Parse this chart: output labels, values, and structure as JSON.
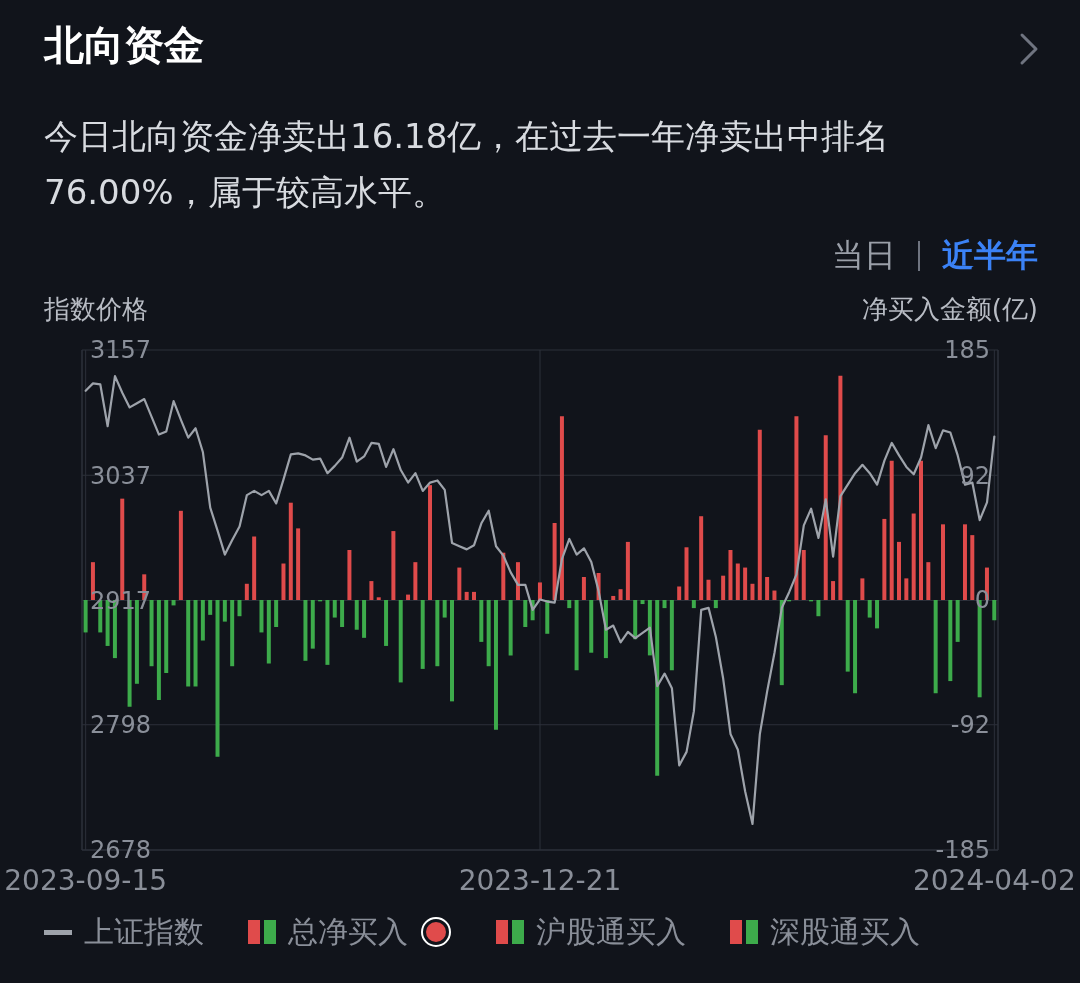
{
  "chart_data": {
    "type": "bar",
    "title": "北向资金",
    "subtitle": "今日北向资金净卖出16.18亿，在过去一年净卖出中排名76.00%，属于较高水平。",
    "annotations": [
      "当日",
      "近半年"
    ],
    "ylabel": "指数价格",
    "y2label": "净买入金额(亿)",
    "categories": [
      "2023-09-15",
      null,
      null,
      null,
      null,
      null,
      null,
      null,
      null,
      null,
      null,
      null,
      null,
      null,
      null,
      null,
      null,
      null,
      null,
      null,
      null,
      null,
      null,
      null,
      null,
      null,
      null,
      null,
      null,
      null,
      null,
      null,
      null,
      null,
      null,
      null,
      null,
      null,
      null,
      null,
      null,
      null,
      null,
      null,
      null,
      null,
      null,
      null,
      null,
      null,
      null,
      null,
      null,
      null,
      null,
      null,
      null,
      null,
      null,
      null,
      null,
      null,
      "2023-12-21",
      null,
      null,
      null,
      null,
      null,
      null,
      null,
      null,
      null,
      null,
      null,
      null,
      null,
      null,
      null,
      null,
      null,
      null,
      null,
      null,
      null,
      null,
      null,
      null,
      null,
      null,
      null,
      null,
      null,
      null,
      null,
      null,
      null,
      null,
      null,
      null,
      null,
      null,
      null,
      null,
      null,
      null,
      null,
      null,
      null,
      null,
      null,
      null,
      null,
      null,
      null,
      null,
      null,
      null,
      null,
      null,
      null,
      null,
      null,
      null,
      null,
      "2024-04-02"
    ],
    "series": [
      {
        "name": "上证指数",
        "type": "line",
        "color": "#9ea3ab",
        "values": [
          3118,
          3125,
          3124,
          3084,
          3132,
          3116,
          3102,
          3106,
          3110,
          3093,
          3076,
          3079,
          3108,
          3090,
          3073,
          3082,
          3059,
          3006,
          2984,
          2961,
          2975,
          2988,
          3018,
          3022,
          3018,
          3022,
          3010,
          3033,
          3057,
          3058,
          3056,
          3052,
          3053,
          3039,
          3046,
          3054,
          3073,
          3050,
          3055,
          3068,
          3067,
          3045,
          3062,
          3042,
          3030,
          3039,
          3022,
          3030,
          3032,
          3023,
          2972,
          2969,
          2966,
          2970,
          2991,
          3003,
          2969,
          2960,
          2944,
          2932,
          2932,
          2908,
          2918,
          2916,
          2915,
          2957,
          2976,
          2961,
          2967,
          2954,
          2926,
          2889,
          2893,
          2877,
          2887,
          2881,
          2886,
          2891,
          2835,
          2847,
          2833,
          2759,
          2772,
          2811,
          2908,
          2910,
          2882,
          2842,
          2789,
          2774,
          2734,
          2703,
          2789,
          2830,
          2867,
          2910,
          2925,
          2942,
          2989,
          3005,
          2977,
          3014,
          2959,
          3017,
          3028,
          3039,
          3047,
          3039,
          3028,
          3051,
          3068,
          3056,
          3045,
          3038,
          3054,
          3085,
          3063,
          3080,
          3078,
          3056,
          3028,
          3030,
          2994,
          3011,
          3074
        ]
      },
      {
        "name": "总净买入",
        "axis": "y2",
        "values": [
          -24,
          28,
          -24,
          -34,
          -43,
          75,
          -79,
          -62,
          19,
          -49,
          -74,
          -54,
          -4,
          66,
          -64,
          -64,
          -30,
          -11,
          -116,
          -16,
          -49,
          -12,
          12,
          47,
          -24,
          -47,
          -20,
          27,
          72,
          53,
          -45,
          -36,
          -1,
          -48,
          -13,
          -20,
          37,
          -22,
          -28,
          14,
          2,
          -34,
          51,
          -61,
          4,
          28,
          -51,
          85,
          -49,
          -13,
          -75,
          24,
          6,
          6,
          -31,
          -49,
          -96,
          35,
          -41,
          28,
          -20,
          -15,
          13,
          -25,
          57,
          136,
          -6,
          -52,
          17,
          -39,
          20,
          -43,
          3,
          8,
          43,
          -29,
          -3,
          -41,
          -130,
          -6,
          -52,
          10,
          39,
          -6,
          62,
          15,
          -6,
          18,
          37,
          27,
          24,
          12,
          126,
          17,
          7,
          -63,
          -1,
          136,
          37,
          -1,
          -12,
          122,
          14,
          166,
          -53,
          -69,
          16,
          -13,
          -21,
          60,
          103,
          43,
          16,
          64,
          103,
          28,
          -69,
          56,
          -60,
          -31,
          56,
          48,
          -72,
          24,
          -15
        ],
        "colors": [
          "#3dab4b",
          "#e04b4b",
          "#3dab4b",
          "#3dab4b",
          "#3dab4b",
          "#e04b4b",
          "#3dab4b",
          "#3dab4b",
          "#e04b4b",
          "#3dab4b",
          "#3dab4b",
          "#3dab4b",
          "#3dab4b",
          "#e04b4b",
          "#3dab4b",
          "#3dab4b",
          "#3dab4b",
          "#3dab4b",
          "#3dab4b",
          "#3dab4b",
          "#3dab4b",
          "#3dab4b",
          "#e04b4b",
          "#e04b4b",
          "#3dab4b",
          "#3dab4b",
          "#3dab4b",
          "#e04b4b",
          "#e04b4b",
          "#e04b4b",
          "#3dab4b",
          "#3dab4b",
          "#3dab4b",
          "#3dab4b",
          "#3dab4b",
          "#3dab4b",
          "#e04b4b",
          "#3dab4b",
          "#3dab4b",
          "#e04b4b",
          "#e04b4b",
          "#3dab4b",
          "#e04b4b",
          "#3dab4b",
          "#e04b4b",
          "#e04b4b",
          "#3dab4b",
          "#e04b4b",
          "#3dab4b",
          "#3dab4b",
          "#3dab4b",
          "#e04b4b",
          "#e04b4b",
          "#e04b4b",
          "#3dab4b",
          "#3dab4b",
          "#3dab4b",
          "#e04b4b",
          "#3dab4b",
          "#e04b4b",
          "#3dab4b",
          "#3dab4b",
          "#e04b4b",
          "#3dab4b",
          "#e04b4b",
          "#e04b4b",
          "#3dab4b",
          "#3dab4b",
          "#e04b4b",
          "#3dab4b",
          "#e04b4b",
          "#3dab4b",
          "#e04b4b",
          "#e04b4b",
          "#e04b4b",
          "#3dab4b",
          "#3dab4b",
          "#3dab4b",
          "#3dab4b",
          "#3dab4b",
          "#3dab4b",
          "#e04b4b",
          "#e04b4b",
          "#3dab4b",
          "#e04b4b",
          "#e04b4b",
          "#3dab4b",
          "#e04b4b",
          "#e04b4b",
          "#e04b4b",
          "#e04b4b",
          "#e04b4b",
          "#e04b4b",
          "#e04b4b",
          "#e04b4b",
          "#3dab4b",
          "#3dab4b",
          "#e04b4b",
          "#e04b4b",
          "#3dab4b",
          "#3dab4b",
          "#e04b4b",
          "#e04b4b",
          "#e04b4b",
          "#3dab4b",
          "#3dab4b",
          "#e04b4b",
          "#3dab4b",
          "#3dab4b",
          "#e04b4b",
          "#e04b4b",
          "#e04b4b",
          "#e04b4b",
          "#e04b4b",
          "#e04b4b",
          "#e04b4b",
          "#3dab4b",
          "#e04b4b",
          "#3dab4b",
          "#3dab4b",
          "#e04b4b",
          "#e04b4b",
          "#3dab4b",
          "#e04b4b",
          "#3dab4b"
        ]
      },
      {
        "name": "沪股通买入",
        "axis": "y2",
        "values": [
          null,
          null,
          null,
          null,
          null,
          null,
          null,
          null,
          null,
          null,
          null,
          null,
          null,
          null,
          null,
          null,
          null,
          null,
          null,
          null,
          null,
          null,
          null,
          null,
          null,
          null,
          null,
          null,
          null,
          null,
          null,
          null,
          null,
          null,
          null,
          null,
          null,
          null,
          null,
          null,
          null,
          null,
          null,
          null,
          null,
          null,
          null,
          null,
          null,
          null,
          null,
          null,
          null,
          null,
          null,
          null,
          null,
          null,
          null,
          null,
          null,
          null,
          null,
          null,
          null,
          null,
          null,
          null,
          null,
          null,
          null,
          null,
          null,
          null,
          null,
          null,
          null,
          null,
          null,
          null,
          null,
          null,
          null,
          null,
          null,
          null,
          null,
          null,
          null,
          null,
          null,
          null,
          null,
          null,
          null,
          null,
          null,
          null,
          null,
          null,
          null,
          null,
          null,
          null,
          null,
          null,
          null,
          null,
          null,
          null,
          null,
          null,
          null,
          null,
          null,
          null,
          null,
          null,
          null,
          null,
          null,
          null,
          null,
          null,
          null
        ]
      },
      {
        "name": "深股通买入",
        "axis": "y2",
        "values": [
          null,
          null,
          null,
          null,
          null,
          null,
          null,
          null,
          null,
          null,
          null,
          null,
          null,
          null,
          null,
          null,
          null,
          null,
          null,
          null,
          null,
          null,
          null,
          null,
          null,
          null,
          null,
          null,
          null,
          null,
          null,
          null,
          null,
          null,
          null,
          null,
          null,
          null,
          null,
          null,
          null,
          null,
          null,
          null,
          null,
          null,
          null,
          null,
          null,
          null,
          null,
          null,
          null,
          null,
          null,
          null,
          null,
          null,
          null,
          null,
          null,
          null,
          null,
          null,
          null,
          null,
          null,
          null,
          null,
          null,
          null,
          null,
          null,
          null,
          null,
          null,
          null,
          null,
          null,
          null,
          null,
          null,
          null,
          null,
          null,
          null,
          null,
          null,
          null,
          null,
          null,
          null,
          null,
          null,
          null,
          null,
          null,
          null,
          null,
          null,
          null,
          null,
          null,
          null,
          null,
          null,
          null,
          null,
          null,
          null,
          null,
          null,
          null,
          null,
          null,
          null,
          null,
          null,
          null,
          null,
          null,
          null,
          null,
          null,
          null
        ]
      }
    ],
    "ylim": [
      2678,
      3157
    ],
    "yticks": [
      2678,
      2798,
      2917,
      3037,
      3157
    ],
    "y2lim": [
      -185,
      185
    ],
    "y2ticks": [
      -185,
      -92,
      0,
      92,
      185
    ],
    "grid": true,
    "legend": "bottom",
    "marker": "none"
  }
}
